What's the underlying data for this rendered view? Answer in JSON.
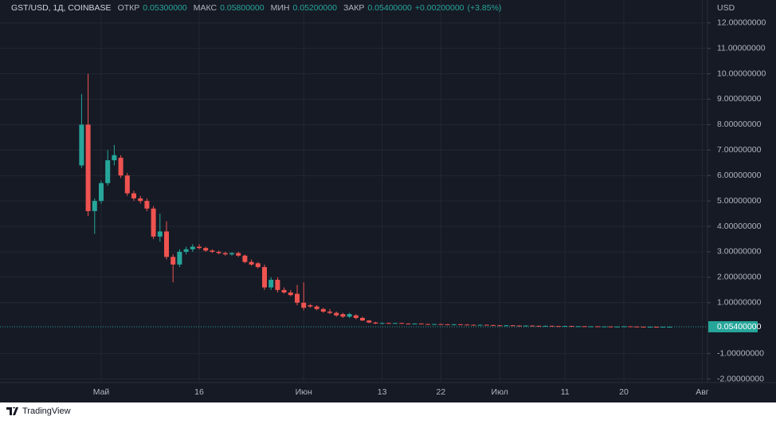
{
  "chart_data": {
    "type": "candlestick",
    "title": "GST/USD, 1Д, COINBASE",
    "header": [
      {
        "name": "ОТКР",
        "value": 0.053,
        "label": "0.05300000"
      },
      {
        "name": "МАКС",
        "value": 0.058,
        "label": "0.05800000"
      },
      {
        "name": "МИН",
        "value": 0.052,
        "label": "0.05200000"
      },
      {
        "name": "ЗАКР",
        "value": 0.054,
        "label": "0.05400000"
      }
    ],
    "change": {
      "value": 0.002,
      "label": "+0.00200000"
    },
    "change_pct": {
      "value": 3.85,
      "label": "(+3.85%)"
    },
    "y_label": "USD",
    "up_color": "#26a69a",
    "down_color": "#ef5350",
    "grid": true,
    "ylim": [
      -2.14,
      12.9
    ],
    "yticks": [
      {
        "value": 12,
        "label": "12.00000000"
      },
      {
        "value": 11,
        "label": "11.00000000"
      },
      {
        "value": 10,
        "label": "10.00000000"
      },
      {
        "value": 9,
        "label": "9.00000000"
      },
      {
        "value": 8,
        "label": "8.00000000"
      },
      {
        "value": 7,
        "label": "7.00000000"
      },
      {
        "value": 6,
        "label": "6.00000000"
      },
      {
        "value": 5,
        "label": "5.00000000"
      },
      {
        "value": 4,
        "label": "4.00000000"
      },
      {
        "value": 3,
        "label": "3.00000000"
      },
      {
        "value": 2,
        "label": "2.00000000"
      },
      {
        "value": 1,
        "label": "1.00000000"
      },
      {
        "value": -1,
        "label": "-1.00000000"
      },
      {
        "value": -2,
        "label": "-2.00000000"
      }
    ],
    "last_price": {
      "value": 0.054,
      "label": "0.05400000"
    },
    "categories": [
      null,
      null,
      null,
      "Май",
      null,
      null,
      null,
      null,
      null,
      null,
      null,
      null,
      null,
      null,
      null,
      null,
      null,
      null,
      "16",
      null,
      null,
      null,
      null,
      null,
      null,
      null,
      null,
      null,
      null,
      null,
      null,
      null,
      null,
      null,
      "Июн",
      null,
      null,
      null,
      null,
      null,
      null,
      null,
      null,
      null,
      null,
      null,
      "13",
      null,
      null,
      null,
      null,
      null,
      null,
      null,
      null,
      "22",
      null,
      null,
      null,
      null,
      null,
      null,
      null,
      null,
      "Июл",
      null,
      null,
      null,
      null,
      null,
      null,
      null,
      null,
      null,
      "11",
      null,
      null,
      null,
      null,
      null,
      null,
      null,
      null,
      "20",
      null,
      null,
      null,
      null,
      null,
      null,
      null,
      null,
      null,
      null,
      null,
      "Авг"
    ],
    "ohlc": [
      [
        6.4,
        9.2,
        6.3,
        8.0
      ],
      [
        8.0,
        10.0,
        4.4,
        4.6
      ],
      [
        4.6,
        5.1,
        3.7,
        5.0
      ],
      [
        5.0,
        5.8,
        4.9,
        5.7
      ],
      [
        5.7,
        7.0,
        5.6,
        6.6
      ],
      [
        6.6,
        7.2,
        6.4,
        6.8
      ],
      [
        6.7,
        6.8,
        5.9,
        6.0
      ],
      [
        6.0,
        6.1,
        5.2,
        5.3
      ],
      [
        5.3,
        5.4,
        5.0,
        5.1
      ],
      [
        5.1,
        5.2,
        4.9,
        5.0
      ],
      [
        5.0,
        5.1,
        4.6,
        4.7
      ],
      [
        4.7,
        4.8,
        3.5,
        3.6
      ],
      [
        3.6,
        4.5,
        3.4,
        3.8
      ],
      [
        3.8,
        4.2,
        2.7,
        2.8
      ],
      [
        2.8,
        2.9,
        1.8,
        2.5
      ],
      [
        2.5,
        3.1,
        2.4,
        3.0
      ],
      [
        3.0,
        3.2,
        2.9,
        3.1
      ],
      [
        3.1,
        3.3,
        3.0,
        3.2
      ],
      [
        3.2,
        3.3,
        3.1,
        3.15
      ],
      [
        3.15,
        3.2,
        3.0,
        3.05
      ],
      [
        3.05,
        3.1,
        2.95,
        3.0
      ],
      [
        3.0,
        3.05,
        2.9,
        2.95
      ],
      [
        2.95,
        3.0,
        2.85,
        2.9
      ],
      [
        2.9,
        2.98,
        2.85,
        2.95
      ],
      [
        2.95,
        3.0,
        2.8,
        2.85
      ],
      [
        2.85,
        2.9,
        2.55,
        2.6
      ],
      [
        2.6,
        2.7,
        2.45,
        2.5
      ],
      [
        2.55,
        2.6,
        2.35,
        2.4
      ],
      [
        2.4,
        2.5,
        1.5,
        1.6
      ],
      [
        1.6,
        2.0,
        1.5,
        1.9
      ],
      [
        1.9,
        2.0,
        1.4,
        1.5
      ],
      [
        1.5,
        1.6,
        1.35,
        1.4
      ],
      [
        1.4,
        1.5,
        1.25,
        1.3
      ],
      [
        1.35,
        1.7,
        0.9,
        1.0
      ],
      [
        1.0,
        1.8,
        0.7,
        0.8
      ],
      [
        0.9,
        0.95,
        0.8,
        0.85
      ],
      [
        0.85,
        0.9,
        0.7,
        0.75
      ],
      [
        0.75,
        0.8,
        0.6,
        0.65
      ],
      [
        0.65,
        0.75,
        0.55,
        0.6
      ],
      [
        0.6,
        0.65,
        0.45,
        0.5
      ],
      [
        0.55,
        0.6,
        0.4,
        0.45
      ],
      [
        0.45,
        0.6,
        0.4,
        0.55
      ],
      [
        0.5,
        0.55,
        0.35,
        0.4
      ],
      [
        0.4,
        0.45,
        0.28,
        0.3
      ],
      [
        0.3,
        0.32,
        0.2,
        0.22
      ],
      [
        0.22,
        0.25,
        0.16,
        0.18
      ],
      [
        0.18,
        0.22,
        0.16,
        0.2
      ],
      [
        0.2,
        0.22,
        0.18,
        0.19
      ],
      [
        0.19,
        0.21,
        0.18,
        0.2
      ],
      [
        0.2,
        0.21,
        0.17,
        0.18
      ],
      [
        0.18,
        0.19,
        0.16,
        0.17
      ],
      [
        0.17,
        0.19,
        0.16,
        0.18
      ],
      [
        0.18,
        0.19,
        0.15,
        0.16
      ],
      [
        0.16,
        0.17,
        0.14,
        0.15
      ],
      [
        0.15,
        0.17,
        0.14,
        0.16
      ],
      [
        0.16,
        0.17,
        0.14,
        0.15
      ],
      [
        0.15,
        0.16,
        0.13,
        0.14
      ],
      [
        0.14,
        0.16,
        0.13,
        0.15
      ],
      [
        0.15,
        0.16,
        0.13,
        0.14
      ],
      [
        0.14,
        0.15,
        0.12,
        0.13
      ],
      [
        0.13,
        0.14,
        0.11,
        0.12
      ],
      [
        0.12,
        0.14,
        0.11,
        0.13
      ],
      [
        0.13,
        0.14,
        0.11,
        0.12
      ],
      [
        0.12,
        0.13,
        0.1,
        0.11
      ],
      [
        0.11,
        0.12,
        0.09,
        0.1
      ],
      [
        0.1,
        0.12,
        0.09,
        0.11
      ],
      [
        0.11,
        0.12,
        0.09,
        0.1
      ],
      [
        0.1,
        0.11,
        0.08,
        0.09
      ],
      [
        0.09,
        0.11,
        0.08,
        0.1
      ],
      [
        0.1,
        0.11,
        0.08,
        0.09
      ],
      [
        0.09,
        0.1,
        0.07,
        0.08
      ],
      [
        0.08,
        0.1,
        0.07,
        0.09
      ],
      [
        0.09,
        0.1,
        0.07,
        0.08
      ],
      [
        0.08,
        0.09,
        0.07,
        0.075
      ],
      [
        0.075,
        0.09,
        0.07,
        0.085
      ],
      [
        0.085,
        0.09,
        0.065,
        0.07
      ],
      [
        0.07,
        0.08,
        0.065,
        0.075
      ],
      [
        0.075,
        0.08,
        0.06,
        0.065
      ],
      [
        0.065,
        0.075,
        0.06,
        0.07
      ],
      [
        0.07,
        0.075,
        0.055,
        0.06
      ],
      [
        0.06,
        0.07,
        0.055,
        0.065
      ],
      [
        0.065,
        0.07,
        0.05,
        0.055
      ],
      [
        0.055,
        0.065,
        0.05,
        0.06
      ],
      [
        0.06,
        0.075,
        0.055,
        0.07
      ],
      [
        0.07,
        0.075,
        0.055,
        0.06
      ],
      [
        0.06,
        0.065,
        0.05,
        0.055
      ],
      [
        0.055,
        0.06,
        0.045,
        0.05
      ],
      [
        0.05,
        0.056,
        0.046,
        0.052
      ],
      [
        0.052,
        0.057,
        0.049,
        0.051
      ],
      [
        0.051,
        0.055,
        0.048,
        0.053
      ],
      [
        0.053,
        0.058,
        0.052,
        0.054
      ],
      null,
      null,
      null,
      null,
      null
    ]
  },
  "watermark": "TradingView"
}
